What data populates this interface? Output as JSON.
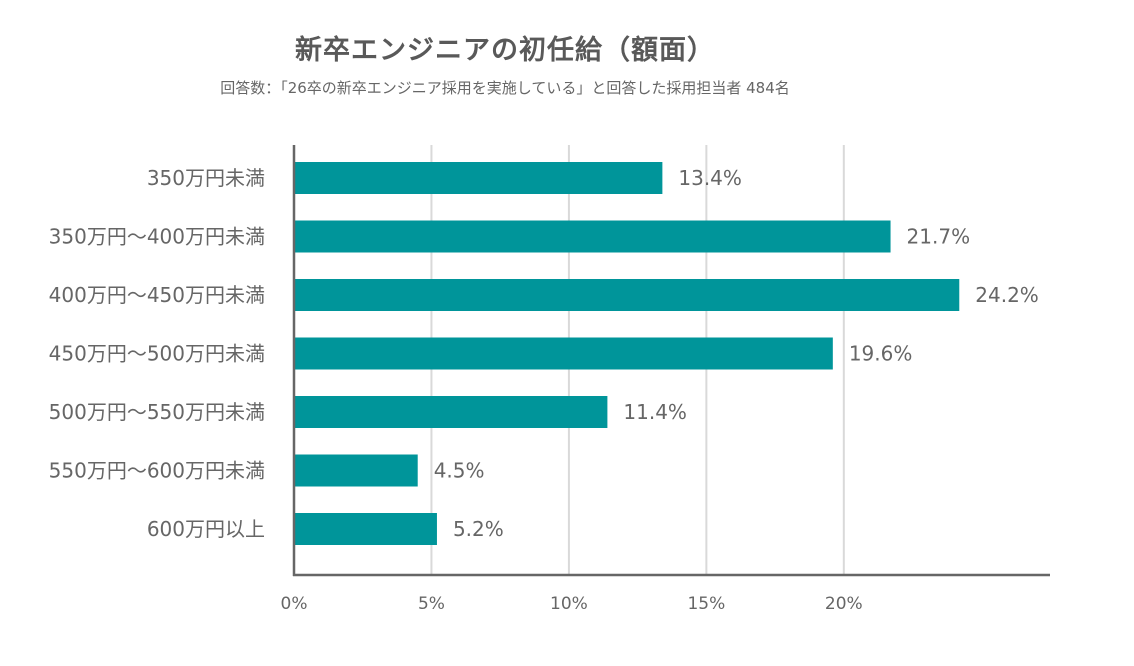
{
  "title": "新卒エンジニアの初任給（額面）",
  "subtitle": "回答数：「26卒の新卒エンジニア採用を実施している」と回答した採用担当者 484名",
  "colors": {
    "bar": "#00959a",
    "grid": "#d9d9d9",
    "axis": "#666666",
    "text": "#666666"
  },
  "chart_data": {
    "type": "bar",
    "orientation": "horizontal",
    "title": "新卒エンジニアの初任給（額面）",
    "subtitle": "回答数：「26卒の新卒エンジニア採用を実施している」と回答した採用担当者 484名",
    "categories": [
      "350万円未満",
      "350万円～400万円未満",
      "400万円～450万円未満",
      "450万円～500万円未満",
      "500万円～550万円未満",
      "550万円～600万円未満",
      "600万円以上"
    ],
    "values": [
      13.4,
      21.7,
      24.2,
      19.6,
      11.4,
      4.5,
      5.2
    ],
    "value_labels": [
      "13.4%",
      "21.7%",
      "24.2%",
      "19.6%",
      "11.4%",
      "4.5%",
      "5.2%"
    ],
    "xticks": [
      0,
      5,
      10,
      15,
      20
    ],
    "xtick_labels": [
      "0%",
      "5%",
      "10%",
      "15%",
      "20%"
    ],
    "xlim": [
      0,
      27.5
    ],
    "xlabel": "",
    "ylabel": "",
    "grid": true,
    "legend": "none"
  }
}
